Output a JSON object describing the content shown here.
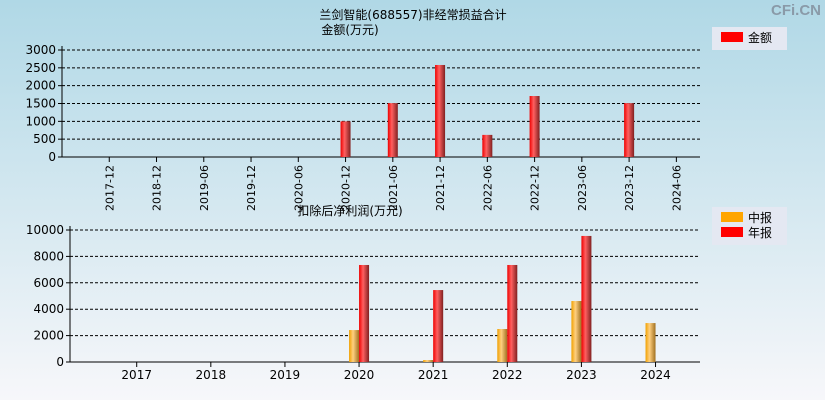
{
  "watermark": "CFi.CN",
  "chart_data": [
    {
      "type": "bar",
      "title": "兰剑智能(688557)非经常损益合计",
      "ylabel": "金额(万元)",
      "categories": [
        "2017-12",
        "2018-12",
        "2019-06",
        "2019-12",
        "2020-06",
        "2020-12",
        "2021-06",
        "2021-12",
        "2022-06",
        "2022-12",
        "2023-06",
        "2023-12",
        "2024-06"
      ],
      "series": [
        {
          "name": "金额",
          "color": "#ff0000",
          "values": [
            0,
            0,
            0,
            0,
            0,
            1000,
            1510,
            2580,
            620,
            1710,
            0,
            1510,
            0
          ]
        }
      ],
      "ylim": [
        0,
        3000
      ],
      "yticks": [
        0,
        500,
        1000,
        1500,
        2000,
        2500,
        3000
      ],
      "grid": true,
      "legend": "top-right"
    },
    {
      "type": "bar",
      "title": "扣除后净利润(万元)",
      "categories": [
        "2017",
        "2018",
        "2019",
        "2020",
        "2021",
        "2022",
        "2023",
        "2024"
      ],
      "series": [
        {
          "name": "中报",
          "color": "#ffa500",
          "values": [
            0,
            0,
            0,
            2420,
            150,
            2500,
            4620,
            2950
          ]
        },
        {
          "name": "年报",
          "color": "#ff0000",
          "values": [
            0,
            0,
            0,
            7350,
            5450,
            7350,
            9550,
            0
          ]
        }
      ],
      "ylim": [
        0,
        10000
      ],
      "yticks": [
        0,
        2000,
        4000,
        6000,
        8000,
        10000
      ],
      "grid": true,
      "legend": "top-right"
    }
  ]
}
